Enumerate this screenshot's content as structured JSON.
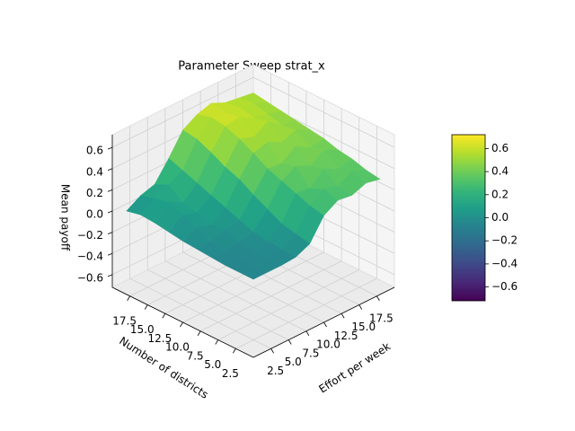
{
  "chart_data": {
    "type": "surface",
    "title": "Parameter Sweep strat_x",
    "x_label": "Effort per week",
    "y_label": "Number of districts",
    "z_label": "Mean payoff",
    "colormap": "viridis",
    "x": [
      1,
      3,
      5,
      7,
      9,
      11,
      13,
      15,
      17,
      19
    ],
    "y": [
      1,
      3,
      5,
      7,
      9,
      11,
      13,
      15,
      17,
      19
    ],
    "z": [
      [
        -0.05,
        -0.05,
        -0.05,
        -0.04,
        0.02,
        0.22,
        0.3,
        0.28,
        0.33,
        0.3
      ],
      [
        -0.05,
        -0.05,
        -0.04,
        -0.03,
        0.05,
        0.25,
        0.34,
        0.3,
        0.38,
        0.32
      ],
      [
        -0.05,
        -0.05,
        -0.05,
        -0.02,
        0.08,
        0.3,
        0.28,
        0.4,
        0.33,
        0.36
      ],
      [
        -0.04,
        -0.05,
        -0.03,
        0.0,
        0.15,
        0.35,
        0.42,
        0.36,
        0.44,
        0.38
      ],
      [
        -0.03,
        -0.02,
        0.02,
        0.05,
        0.22,
        0.4,
        0.38,
        0.48,
        0.4,
        0.42
      ],
      [
        -0.02,
        0.04,
        0.0,
        0.1,
        0.3,
        0.48,
        0.52,
        0.45,
        0.5,
        0.44
      ],
      [
        0.0,
        0.1,
        0.05,
        0.15,
        0.35,
        0.55,
        0.5,
        0.58,
        0.48,
        0.46
      ],
      [
        0.02,
        0.15,
        0.08,
        0.2,
        0.42,
        0.6,
        0.62,
        0.55,
        0.52,
        0.48
      ],
      [
        0.03,
        0.12,
        0.18,
        0.25,
        0.48,
        0.62,
        0.6,
        0.58,
        0.55,
        0.5
      ],
      [
        0.0,
        0.08,
        0.12,
        0.3,
        0.5,
        0.58,
        0.62,
        0.56,
        0.54,
        0.52
      ]
    ],
    "xlim": [
      0,
      20
    ],
    "ylim": [
      0,
      20
    ],
    "zlim": [
      -0.72,
      0.72
    ],
    "xticks": [
      2.5,
      {
        "value": 5,
        "label": "5.0"
      },
      7.5,
      {
        "value": 10,
        "label": "10.0"
      },
      12.5,
      {
        "value": 15,
        "label": "15.0"
      },
      17.5
    ],
    "yticks": [
      2.5,
      {
        "value": 5,
        "label": "5.0"
      },
      7.5,
      {
        "value": 10,
        "label": "10.0"
      },
      12.5,
      {
        "value": 15,
        "label": "15.0"
      },
      17.5
    ],
    "zticks": [
      {
        "value": -0.6,
        "label": "−0.6"
      },
      {
        "value": -0.4,
        "label": "−0.4"
      },
      {
        "value": -0.2,
        "label": "−0.2"
      },
      {
        "value": 0,
        "label": "0.0"
      },
      0.2,
      0.4,
      0.6
    ],
    "clim": [
      -0.72,
      0.72
    ],
    "cticks": [
      {
        "value": -0.6,
        "label": "−0.6"
      },
      {
        "value": -0.4,
        "label": "−0.4"
      },
      {
        "value": -0.2,
        "label": "−0.2"
      },
      {
        "value": 0,
        "label": "0.0"
      },
      0.2,
      0.4,
      0.6
    ],
    "grid": true
  }
}
